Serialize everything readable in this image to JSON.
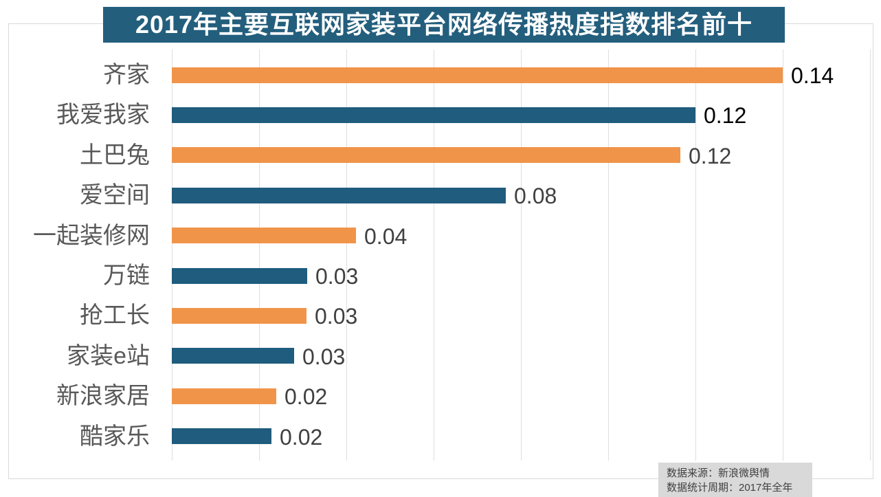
{
  "title": "2017年主要互联网家装平台网络传播热度指数排名前十",
  "source_note": {
    "line1": "数据来源：新浪微舆情",
    "line2": "数据统计周期：2017年全年"
  },
  "colors": {
    "title_bg": "#235e7d",
    "bar_orange": "#f0944a",
    "bar_blue": "#1f5c7d",
    "grid_line": "#dedede",
    "frame_border": "#d9d9d9",
    "category_label": "#595959",
    "value_label_default": "#404040",
    "value_label_emphasis": "#000000",
    "note_bg": "#d9d9d9",
    "note_text": "#404040"
  },
  "chart_data": {
    "type": "bar",
    "orientation": "horizontal",
    "title": "2017年主要互联网家装平台网络传播热度指数排名前十",
    "categories": [
      "齐家",
      "我爱我家",
      "土巴兔",
      "爱空间",
      "一起装修网",
      "万链",
      "抢工长",
      "家装e站",
      "新浪家居",
      "酷家乐"
    ],
    "values": [
      0.14,
      0.12,
      0.12,
      0.08,
      0.04,
      0.03,
      0.03,
      0.03,
      0.02,
      0.02
    ],
    "values_precise": [
      0.14,
      0.12,
      0.1165,
      0.0765,
      0.0422,
      0.031,
      0.0308,
      0.028,
      0.0239,
      0.0228
    ],
    "value_labels": [
      "0.14",
      "0.12",
      "0.12",
      "0.08",
      "0.04",
      "0.03",
      "0.03",
      "0.03",
      "0.02",
      "0.02"
    ],
    "bar_colors": [
      "#f0944a",
      "#1f5c7d",
      "#f0944a",
      "#1f5c7d",
      "#f0944a",
      "#1f5c7d",
      "#f0944a",
      "#1f5c7d",
      "#f0944a",
      "#1f5c7d"
    ],
    "value_label_colors": [
      "#000000",
      "#000000",
      "#404040",
      "#404040",
      "#404040",
      "#404040",
      "#404040",
      "#404040",
      "#404040",
      "#404040"
    ],
    "xlabel": "",
    "ylabel": "",
    "xlim": [
      0,
      0.16
    ],
    "grid_interval": 0.02,
    "grid": true,
    "legend": false
  }
}
